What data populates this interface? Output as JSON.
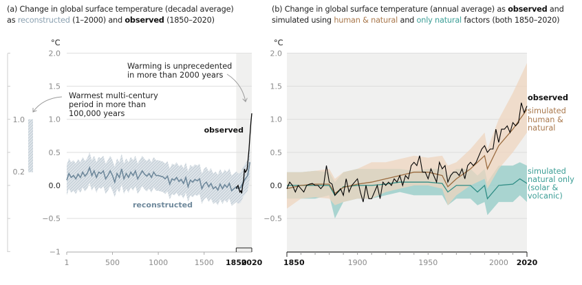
{
  "panel_a": {
    "title_line1": "(a) Change in global surface temperature (decadal average)",
    "title_line2_parts": [
      "as ",
      "reconstructed",
      " (1–2000) and ",
      "observed",
      " (1850–2020)"
    ],
    "unit": "°C",
    "annotation_unprecedented": [
      "Warming is unprecedented",
      "in more than 2000 years"
    ],
    "annotation_warmest": [
      "Warmest multi-century",
      "period in more than",
      "100,000 years"
    ],
    "label_observed": "observed",
    "label_reconstructed": "reconstructed",
    "side_bar": {
      "labels": [
        "1.0",
        "0.2"
      ],
      "range": [
        0.2,
        1.0
      ]
    }
  },
  "panel_b": {
    "title_line1_parts": [
      "(b) Change in global surface temperature (annual average) as ",
      "observed",
      " and"
    ],
    "title_line2_parts": [
      "simulated using ",
      "human & natural",
      " and ",
      "only natural",
      " factors (both 1850–2020)"
    ],
    "unit": "°C",
    "label_observed": "observed",
    "label_human": [
      "simulated",
      "human &",
      "natural"
    ],
    "label_natural": [
      "simulated",
      "natural only",
      "(solar &",
      "volcanic)"
    ]
  },
  "colors": {
    "reconstructed": "#6e889b",
    "reconstructed_band": "#c4cfd8",
    "observed": "#000000",
    "human_natural_line": "#9a6b3f",
    "human_natural_band": "#efd5bf",
    "human_natural_label": "#a9784c",
    "natural_line": "#2e8c84",
    "natural_band": "#9ccfca",
    "natural_label": "#3a9d95",
    "recent_shade": "#f0f0ef"
  },
  "chart_data": [
    {
      "type": "line",
      "title": "(a) Change in global surface temperature (decadal average)",
      "ylabel": "°C",
      "ylim": [
        -1,
        2
      ],
      "xlim": [
        1,
        2020
      ],
      "yticks": [
        "2.0",
        "1.5",
        "1.0",
        "0.5",
        "0.0",
        "−0.5",
        "−1"
      ],
      "ytick_values": [
        2,
        1.5,
        1,
        0.5,
        0,
        -0.5,
        -1
      ],
      "xticks": [
        "1",
        "500",
        "1000",
        "1500",
        "1850",
        "2020"
      ],
      "xtick_values": [
        1,
        500,
        1000,
        1500,
        1850,
        2020
      ],
      "grid": true,
      "shaded_period": [
        1850,
        2020
      ],
      "series": [
        {
          "name": "reconstructed",
          "x": [
            1,
            25,
            50,
            75,
            100,
            125,
            150,
            175,
            200,
            225,
            250,
            275,
            300,
            325,
            350,
            375,
            400,
            425,
            450,
            475,
            500,
            525,
            550,
            575,
            600,
            625,
            650,
            675,
            700,
            725,
            750,
            775,
            800,
            825,
            850,
            875,
            900,
            925,
            950,
            975,
            1000,
            1025,
            1050,
            1075,
            1100,
            1125,
            1150,
            1175,
            1200,
            1225,
            1250,
            1275,
            1300,
            1325,
            1350,
            1375,
            1400,
            1425,
            1450,
            1475,
            1500,
            1525,
            1550,
            1575,
            1600,
            1625,
            1650,
            1675,
            1700,
            1725,
            1750,
            1775,
            1800,
            1825,
            1850,
            1875,
            1900,
            1925,
            1950,
            1975,
            2000
          ],
          "y": [
            0.08,
            0.18,
            0.12,
            0.15,
            0.1,
            0.17,
            0.12,
            0.2,
            0.14,
            0.18,
            0.27,
            0.15,
            0.22,
            0.12,
            0.2,
            0.18,
            0.22,
            0.1,
            0.15,
            0.22,
            0.15,
            0.05,
            0.18,
            0.12,
            0.25,
            0.1,
            0.18,
            0.12,
            0.2,
            0.15,
            0.22,
            0.1,
            0.16,
            0.22,
            0.17,
            0.14,
            0.18,
            0.12,
            0.2,
            0.15,
            0.15,
            0.14,
            0.13,
            0.1,
            0.14,
            0.02,
            0.1,
            0.08,
            0.12,
            0.06,
            0.09,
            0.03,
            0.12,
            -0.02,
            0.08,
            0.05,
            0.09,
            0.07,
            0.1,
            -0.05,
            0.02,
            0.05,
            -0.02,
            0.03,
            -0.05,
            -0.02,
            -0.07,
            0.02,
            -0.05,
            0.01,
            -0.03,
            0.03,
            -0.08,
            -0.05,
            -0.02,
            -0.05,
            -0.03,
            0.05,
            0.1,
            0.15,
            0.35
          ],
          "band_halfwidth": 0.23
        },
        {
          "name": "observed",
          "x": [
            1850,
            1860,
            1870,
            1880,
            1890,
            1900,
            1910,
            1920,
            1930,
            1940,
            1950,
            1960,
            1970,
            1980,
            1990,
            2000,
            2010,
            2020
          ],
          "y": [
            -0.05,
            -0.02,
            0.0,
            -0.05,
            -0.1,
            -0.08,
            -0.12,
            0.0,
            0.05,
            0.25,
            0.2,
            0.22,
            0.25,
            0.4,
            0.55,
            0.75,
            0.95,
            1.09
          ]
        }
      ]
    },
    {
      "type": "line",
      "title": "(b) Change in global surface temperature (annual average)",
      "ylabel": "°C",
      "ylim": [
        -1,
        2
      ],
      "xlim": [
        1850,
        2020
      ],
      "yticks": [
        "2.0",
        "1.5",
        "1.0",
        "0.5",
        "0.0",
        "−0.5"
      ],
      "ytick_values": [
        2,
        1.5,
        1,
        0.5,
        0,
        -0.5
      ],
      "xticks": [
        "1850",
        "1900",
        "1950",
        "2000",
        "2020"
      ],
      "xtick_values": [
        1850,
        1900,
        1950,
        2000,
        2020
      ],
      "grid": true,
      "series": [
        {
          "name": "simulated human & natural",
          "x": [
            1850,
            1860,
            1870,
            1880,
            1884,
            1890,
            1900,
            1910,
            1920,
            1930,
            1940,
            1950,
            1960,
            1964,
            1970,
            1980,
            1990,
            1992,
            2000,
            2010,
            2020
          ],
          "y": [
            -0.05,
            0.0,
            0.02,
            0.02,
            -0.12,
            -0.03,
            0.02,
            0.05,
            0.1,
            0.15,
            0.2,
            0.2,
            0.15,
            -0.02,
            0.1,
            0.25,
            0.45,
            0.25,
            0.6,
            0.85,
            1.15
          ],
          "upper": [
            0.2,
            0.2,
            0.22,
            0.25,
            0.1,
            0.2,
            0.25,
            0.35,
            0.35,
            0.4,
            0.45,
            0.42,
            0.45,
            0.3,
            0.35,
            0.55,
            0.8,
            0.55,
            1.0,
            1.4,
            1.85
          ],
          "lower": [
            -0.35,
            -0.2,
            -0.18,
            -0.2,
            -0.3,
            -0.25,
            -0.2,
            -0.2,
            -0.1,
            -0.05,
            0.0,
            0.0,
            -0.05,
            -0.3,
            -0.15,
            0.0,
            0.1,
            -0.05,
            0.25,
            0.5,
            0.8
          ]
        },
        {
          "name": "simulated natural only (solar & volcanic)",
          "x": [
            1850,
            1860,
            1870,
            1880,
            1884,
            1890,
            1900,
            1910,
            1920,
            1930,
            1940,
            1950,
            1960,
            1964,
            1970,
            1980,
            1985,
            1990,
            1992,
            2000,
            2010,
            2015,
            2020
          ],
          "y": [
            0.0,
            0.0,
            0.0,
            0.0,
            -0.15,
            -0.02,
            0.0,
            0.0,
            0.02,
            0.05,
            0.05,
            0.05,
            0.03,
            -0.1,
            0.0,
            0.0,
            -0.1,
            0.0,
            -0.2,
            0.0,
            0.02,
            0.1,
            0.03
          ],
          "upper": [
            0.2,
            0.2,
            0.22,
            0.2,
            0.05,
            0.2,
            0.25,
            0.25,
            0.25,
            0.25,
            0.22,
            0.25,
            0.25,
            0.15,
            0.25,
            0.25,
            0.15,
            0.25,
            0.05,
            0.3,
            0.3,
            0.35,
            0.3
          ],
          "lower": [
            -0.2,
            -0.2,
            -0.2,
            -0.15,
            -0.5,
            -0.25,
            -0.2,
            -0.2,
            -0.15,
            -0.1,
            -0.15,
            -0.15,
            -0.15,
            -0.3,
            -0.2,
            -0.2,
            -0.3,
            -0.25,
            -0.45,
            -0.25,
            -0.25,
            -0.15,
            -0.25
          ]
        },
        {
          "name": "observed",
          "x": [
            1850,
            1852,
            1854,
            1856,
            1858,
            1860,
            1862,
            1864,
            1866,
            1868,
            1870,
            1872,
            1874,
            1876,
            1878,
            1880,
            1882,
            1884,
            1886,
            1888,
            1890,
            1892,
            1894,
            1896,
            1898,
            1900,
            1902,
            1904,
            1906,
            1908,
            1910,
            1912,
            1914,
            1916,
            1918,
            1920,
            1922,
            1924,
            1926,
            1928,
            1930,
            1932,
            1934,
            1936,
            1938,
            1940,
            1942,
            1944,
            1946,
            1948,
            1950,
            1952,
            1954,
            1956,
            1958,
            1960,
            1962,
            1964,
            1966,
            1968,
            1970,
            1972,
            1974,
            1976,
            1978,
            1980,
            1982,
            1984,
            1986,
            1988,
            1990,
            1992,
            1994,
            1996,
            1998,
            2000,
            2002,
            2004,
            2006,
            2008,
            2010,
            2012,
            2014,
            2016,
            2018,
            2020
          ],
          "y": [
            -0.05,
            0.05,
            0.0,
            -0.1,
            0.0,
            -0.05,
            -0.1,
            0.0,
            0.02,
            0.03,
            0.0,
            0.0,
            -0.05,
            0.0,
            0.3,
            0.05,
            0.02,
            -0.15,
            -0.1,
            -0.05,
            -0.15,
            0.1,
            -0.1,
            0.0,
            0.05,
            0.1,
            -0.1,
            -0.25,
            0.0,
            -0.2,
            -0.2,
            -0.1,
            0.0,
            -0.2,
            0.05,
            0.0,
            0.05,
            0.0,
            0.1,
            0.05,
            0.15,
            0.0,
            0.15,
            0.1,
            0.3,
            0.35,
            0.3,
            0.45,
            0.2,
            0.2,
            0.1,
            0.25,
            0.15,
            0.05,
            0.35,
            0.25,
            0.3,
            0.05,
            0.15,
            0.2,
            0.2,
            0.15,
            0.25,
            0.1,
            0.3,
            0.35,
            0.3,
            0.35,
            0.45,
            0.55,
            0.6,
            0.5,
            0.55,
            0.55,
            0.85,
            0.65,
            0.85,
            0.85,
            0.9,
            0.8,
            0.95,
            0.9,
            0.95,
            1.25,
            1.1,
            1.2
          ]
        }
      ]
    }
  ]
}
